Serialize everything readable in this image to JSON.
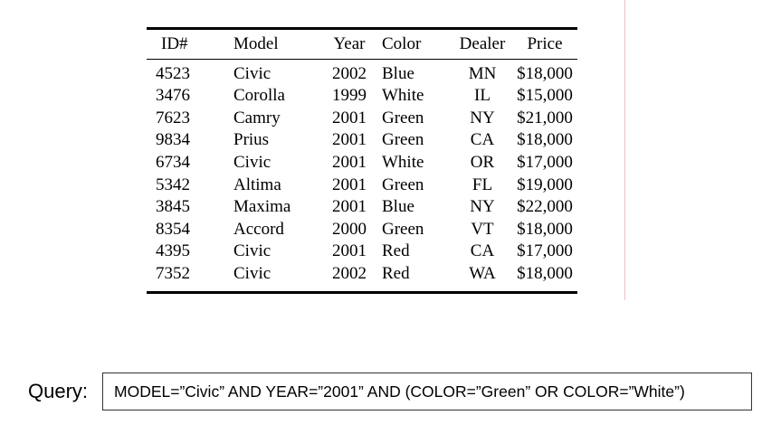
{
  "table": {
    "headers": [
      "ID#",
      "Model",
      "Year",
      "Color",
      "Dealer",
      "Price"
    ],
    "rows": [
      [
        "4523",
        "Civic",
        "2002",
        "Blue",
        "MN",
        "$18,000"
      ],
      [
        "3476",
        "Corolla",
        "1999",
        "White",
        "IL",
        "$15,000"
      ],
      [
        "7623",
        "Camry",
        "2001",
        "Green",
        "NY",
        "$21,000"
      ],
      [
        "9834",
        "Prius",
        "2001",
        "Green",
        "CA",
        "$18,000"
      ],
      [
        "6734",
        "Civic",
        "2001",
        "White",
        "OR",
        "$17,000"
      ],
      [
        "5342",
        "Altima",
        "2001",
        "Green",
        "FL",
        "$19,000"
      ],
      [
        "3845",
        "Maxima",
        "2001",
        "Blue",
        "NY",
        "$22,000"
      ],
      [
        "8354",
        "Accord",
        "2000",
        "Green",
        "VT",
        "$18,000"
      ],
      [
        "4395",
        "Civic",
        "2001",
        "Red",
        "CA",
        "$17,000"
      ],
      [
        "7352",
        "Civic",
        "2002",
        "Red",
        "WA",
        "$18,000"
      ]
    ]
  },
  "query": {
    "label": "Query:",
    "text": "MODEL=”Civic” AND YEAR=”2001” AND (COLOR=”Green” OR COLOR=”White”)"
  },
  "colors": {
    "divider": "#e8c4c4",
    "rule": "#000000",
    "box_border": "#333333"
  }
}
